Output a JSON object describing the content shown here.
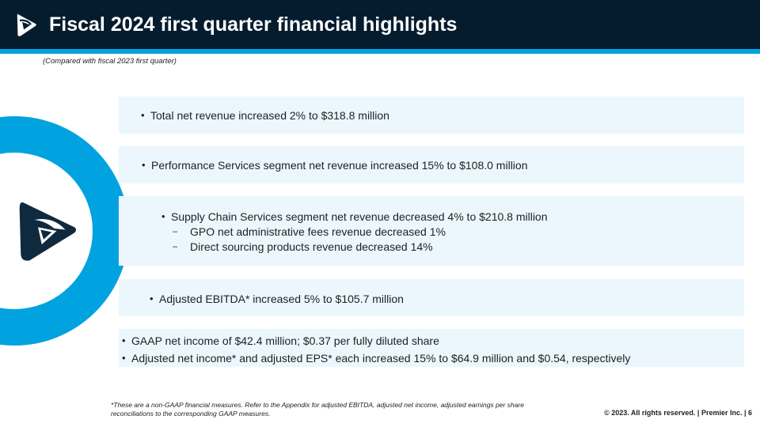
{
  "header": {
    "title": "Fiscal 2024 first quarter financial highlights",
    "subtitle": "(Compared with fiscal 2023 first quarter)"
  },
  "colors": {
    "header_bg": "#041c2e",
    "accent_blue": "#00a3e0",
    "band_bg": "#ebf7fd",
    "logo_navy": "#0f2a3f"
  },
  "logo": {
    "icon": "premier-logo-icon"
  },
  "highlights": [
    {
      "items": [
        {
          "type": "bullet",
          "text": "Total net revenue increased 2% to $318.8 million"
        }
      ]
    },
    {
      "items": [
        {
          "type": "bullet",
          "text": "Performance Services segment net revenue increased 15% to $108.0 million"
        }
      ]
    },
    {
      "items": [
        {
          "type": "bullet",
          "text": "Supply Chain Services segment net revenue decreased 4% to $210.8 million"
        },
        {
          "type": "dash",
          "text": "GPO net administrative fees revenue decreased 1%"
        },
        {
          "type": "dash",
          "text": "Direct sourcing products revenue decreased 14%"
        }
      ]
    },
    {
      "items": [
        {
          "type": "bullet",
          "text": "Adjusted EBITDA* increased 5% to $105.7 million"
        }
      ]
    },
    {
      "items": [
        {
          "type": "bullet",
          "text": "GAAP net income of $42.4 million; $0.37 per fully diluted share"
        },
        {
          "type": "bullet",
          "text": "Adjusted net income* and adjusted EPS* each increased 15% to $64.9 million and $0.54, respectively"
        }
      ]
    }
  ],
  "footer": {
    "footnote": "*These are a non-GAAP financial measures. Refer to the Appendix for adjusted EBITDA, adjusted net income, adjusted earnings per share reconciliations to the corresponding GAAP measures.",
    "copyright": "© 2023. All rights reserved.  |  Premier Inc.  |  6"
  }
}
